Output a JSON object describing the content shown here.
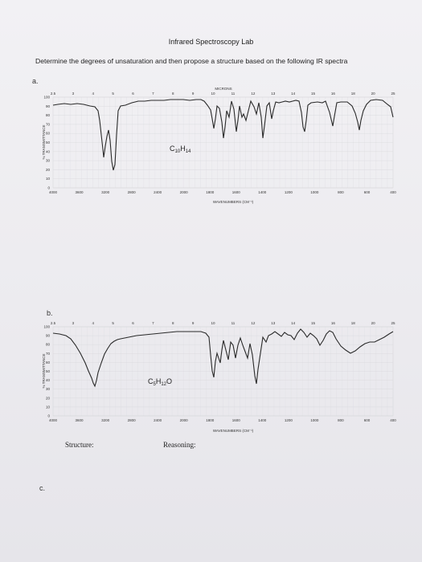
{
  "title": "Infrared Spectroscopy Lab",
  "instructions": "Determine the degrees of unsaturation and then propose a structure based on the following IR spectra",
  "sections": [
    "a.",
    "b.",
    "c."
  ],
  "spectra": [
    {
      "formula": "C10H14",
      "formula_parts": [
        "C",
        "10",
        "H",
        "14"
      ],
      "y_axis_label": "% TRANSMITTANCE",
      "x_axis_label": "WAVENUMBERS (CM⁻¹)",
      "top_axis_label": "MICRONS",
      "x_ticks": [
        "4000",
        "3600",
        "3200",
        "2800",
        "2400",
        "2000",
        "1800",
        "1600",
        "1400",
        "1200",
        "1000",
        "800",
        "600",
        "400"
      ],
      "y_ticks": [
        "100",
        "90",
        "80",
        "70",
        "60",
        "50",
        "40",
        "30",
        "20",
        "10",
        "0"
      ],
      "micron_ticks": [
        "2.5",
        "3",
        "4",
        "5",
        "6",
        "7",
        "8",
        "9",
        "10",
        "11",
        "12",
        "13",
        "14",
        "15",
        "16",
        "18",
        "20",
        "25"
      ]
    },
    {
      "formula": "C5H12O",
      "formula_parts": [
        "C",
        "5",
        "H",
        "12",
        "O"
      ],
      "y_axis_label": "% TRANSMITTANCE",
      "x_axis_label": "WAVENUMBERS (CM⁻¹)",
      "x_ticks": [
        "4000",
        "3600",
        "3200",
        "2800",
        "2400",
        "2000",
        "1800",
        "1600",
        "1400",
        "1200",
        "1000",
        "800",
        "600",
        "400"
      ],
      "y_ticks": [
        "100",
        "90",
        "80",
        "70",
        "60",
        "50",
        "40",
        "30",
        "20",
        "10",
        "0"
      ],
      "micron_ticks": [
        "2.5",
        "3",
        "4",
        "5",
        "6",
        "7",
        "8",
        "9",
        "10",
        "11",
        "12",
        "13",
        "14",
        "15",
        "16",
        "18",
        "20",
        "25"
      ]
    }
  ],
  "labels": {
    "structure": "Structure:",
    "reasoning": "Reasoning:"
  }
}
